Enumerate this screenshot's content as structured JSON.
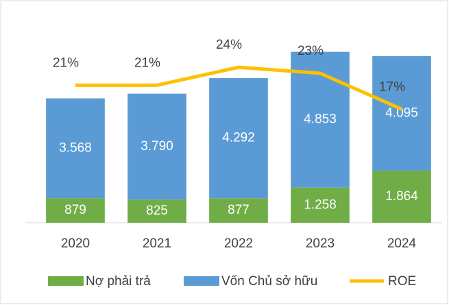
{
  "chart_data": {
    "type": "bar",
    "categories": [
      "2020",
      "2021",
      "2022",
      "2023",
      "2024"
    ],
    "series": [
      {
        "name": "Nợ phải trả",
        "color": "#70ad47",
        "values": [
          879,
          825,
          877,
          1258,
          1864
        ],
        "value_labels": [
          "879",
          "825",
          "877",
          "1.258",
          "1.864"
        ]
      },
      {
        "name": "Vốn Chủ sở hữu",
        "color": "#5b9bd5",
        "values": [
          3568,
          3790,
          4292,
          4853,
          4095
        ],
        "value_labels": [
          "3.568",
          "3.790",
          "4.292",
          "4.853",
          "4.095"
        ]
      },
      {
        "name": "ROE",
        "type": "line",
        "axis": "y2",
        "color": "#ffc000",
        "values": [
          21,
          21,
          24,
          23,
          17
        ],
        "value_labels": [
          "21%",
          "21%",
          "24%",
          "23%",
          "17%"
        ]
      }
    ],
    "stacked": true,
    "ylim": [
      0,
      6200
    ],
    "y2lim": [
      -2,
      27
    ],
    "legend": "bottom"
  }
}
